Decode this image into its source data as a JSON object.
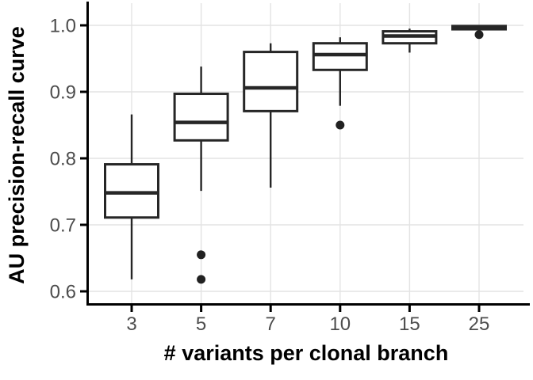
{
  "chart_data": {
    "type": "boxplot",
    "title": "",
    "xlabel": "# variants per clonal branch",
    "ylabel": "AU precision-recall curve",
    "categories": [
      "3",
      "5",
      "7",
      "10",
      "15",
      "25"
    ],
    "yticks": [
      0.6,
      0.7,
      0.8,
      0.9,
      1.0
    ],
    "ytick_labels": [
      "0.6",
      "0.7",
      "0.8",
      "0.9",
      "1.0"
    ],
    "ylim": [
      0.58,
      1.005
    ],
    "grid": true,
    "legend_position": "none",
    "boxes": [
      {
        "category": "3",
        "whisker_low": 0.618,
        "q1": 0.711,
        "median": 0.748,
        "q3": 0.791,
        "whisker_high": 0.866,
        "outliers": []
      },
      {
        "category": "5",
        "whisker_low": 0.751,
        "q1": 0.827,
        "median": 0.854,
        "q3": 0.897,
        "whisker_high": 0.938,
        "outliers": [
          0.655,
          0.618
        ]
      },
      {
        "category": "7",
        "whisker_low": 0.756,
        "q1": 0.871,
        "median": 0.906,
        "q3": 0.96,
        "whisker_high": 0.973,
        "outliers": []
      },
      {
        "category": "10",
        "whisker_low": 0.879,
        "q1": 0.933,
        "median": 0.956,
        "q3": 0.973,
        "whisker_high": 0.982,
        "outliers": [
          0.85
        ]
      },
      {
        "category": "15",
        "whisker_low": 0.959,
        "q1": 0.973,
        "median": 0.984,
        "q3": 0.991,
        "whisker_high": 0.995,
        "outliers": []
      },
      {
        "category": "25",
        "whisker_low": 0.993,
        "q1": 0.994,
        "median": 0.997,
        "q3": 0.999,
        "whisker_high": 1.0,
        "outliers": [
          0.986
        ]
      }
    ],
    "colors": {
      "box_stroke": "#262626",
      "box_fill": "#ffffff",
      "median": "#262626",
      "outlier": "#212121",
      "gridline": "#e3e3e3",
      "axis_line": "#000000",
      "tick_label": "#4d4d4d",
      "axis_title": "#000000",
      "background": "#ffffff"
    }
  }
}
